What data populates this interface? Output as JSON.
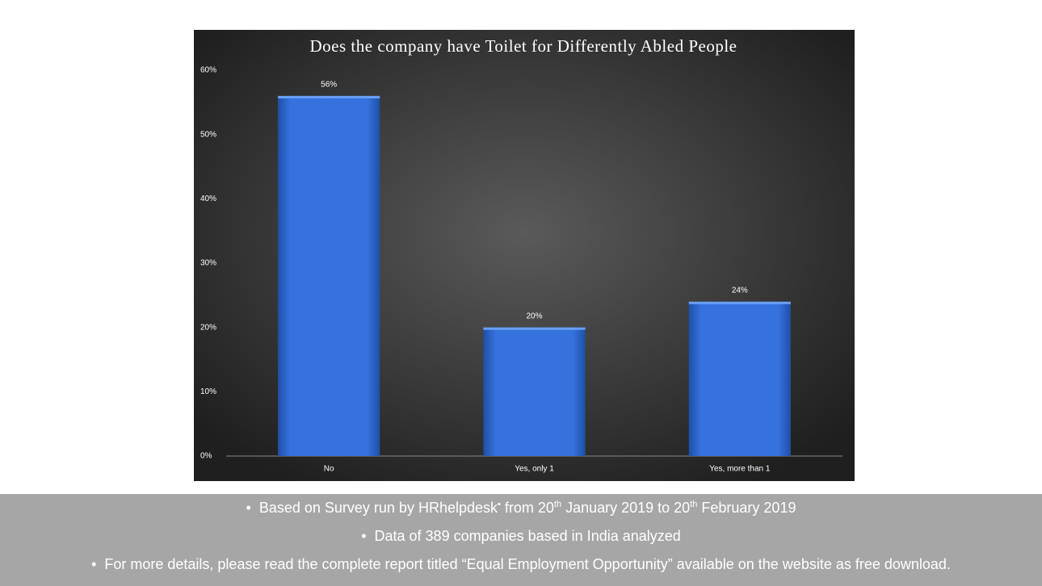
{
  "chart_data": {
    "type": "bar",
    "title": "Does the company have Toilet for Differently Abled People",
    "categories": [
      "No",
      "Yes, only 1",
      "Yes, more than 1"
    ],
    "values": [
      56,
      20,
      24
    ],
    "value_labels": [
      "56%",
      "20%",
      "24%"
    ],
    "color": "#3572dd",
    "ylim": [
      0,
      60
    ],
    "yticks": [
      {
        "value": 0,
        "label": "0%"
      },
      {
        "value": 10,
        "label": "10%"
      },
      {
        "value": 20,
        "label": "20%"
      },
      {
        "value": 30,
        "label": "30%"
      },
      {
        "value": 40,
        "label": "40%"
      },
      {
        "value": 50,
        "label": "50%"
      },
      {
        "value": 60,
        "label": "60%"
      }
    ],
    "grid": false
  },
  "notes": [
    [
      {
        "text": "Based on Survey run by HRhelpdesk"
      },
      {
        "sup": "•"
      },
      {
        "text": " from 20"
      },
      {
        "sup": "th"
      },
      {
        "text": " January 2019 to 20"
      },
      {
        "sup": "th"
      },
      {
        "text": " February 2019"
      }
    ],
    [
      {
        "text": "Data of 389 companies based in India analyzed"
      }
    ],
    [
      {
        "text": "For more details, please read the complete report titled “Equal Employment Opportunity” available on the website as free download."
      }
    ]
  ]
}
